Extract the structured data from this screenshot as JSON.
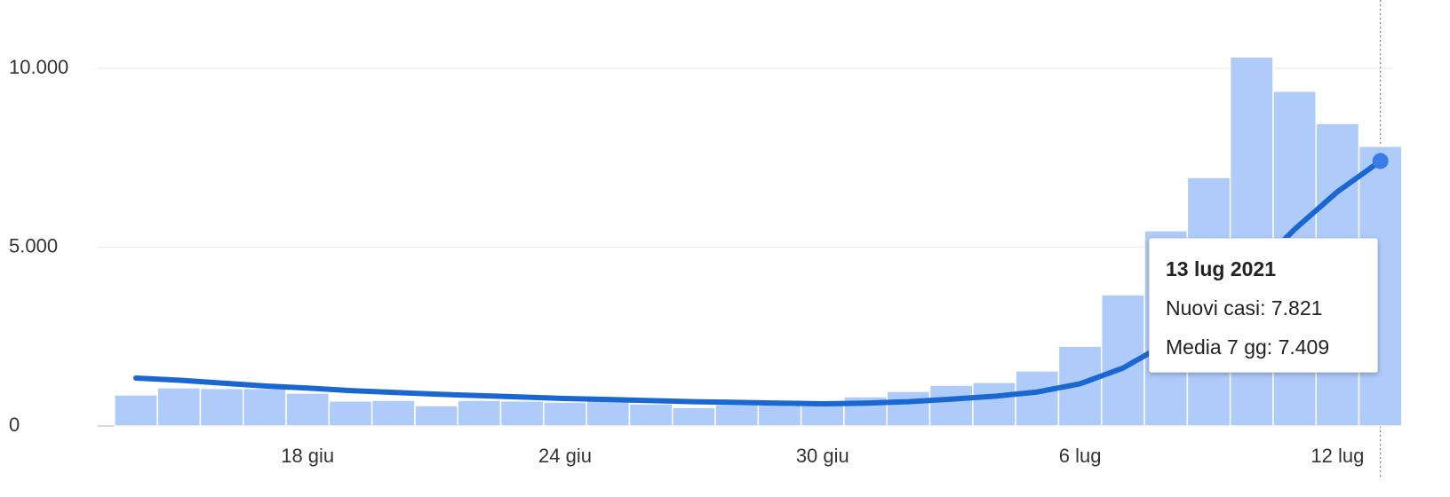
{
  "chart_data": {
    "type": "bar+line",
    "categories": [
      null,
      null,
      null,
      null,
      "18 giu",
      null,
      null,
      null,
      null,
      null,
      "24 giu",
      null,
      null,
      null,
      null,
      null,
      "30 giu",
      null,
      null,
      null,
      null,
      null,
      "6 lug",
      null,
      null,
      null,
      null,
      null,
      "12 lug",
      null
    ],
    "series": [
      {
        "type": "bar",
        "color": "#aecbfa",
        "values": [
          870,
          1070,
          1050,
          1050,
          920,
          700,
          720,
          570,
          720,
          700,
          670,
          700,
          620,
          520,
          600,
          600,
          650,
          820,
          970,
          1140,
          1220,
          1540,
          2230,
          3670,
          5460,
          6950,
          10320,
          9360,
          8460,
          7821
        ]
      },
      {
        "type": "line",
        "color": "#1a67d2",
        "values": [
          1340,
          1280,
          1200,
          1120,
          1060,
          990,
          940,
          890,
          850,
          810,
          770,
          740,
          710,
          680,
          660,
          640,
          620,
          640,
          680,
          750,
          830,
          950,
          1180,
          1620,
          2300,
          3100,
          4300,
          5500,
          6550,
          7409
        ]
      }
    ],
    "ylim": [
      0,
      11910
    ],
    "yticks": [
      0,
      {
        "value": 5000,
        "label": "5.000"
      },
      {
        "value": 10000,
        "label": "10.000"
      }
    ],
    "grid": true,
    "tooltip": {
      "title": "13 lug 2021",
      "lines": [
        "Nuovi casi: 7.821",
        "Media 7 gg: 7.409"
      ]
    }
  }
}
